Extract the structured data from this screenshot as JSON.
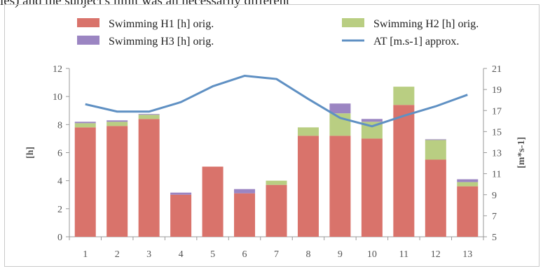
{
  "caption_text": "ies) and the subject's limit was an necessarily different",
  "chart_data": {
    "type": "bar",
    "stacked": true,
    "categories": [
      "1",
      "2",
      "3",
      "4",
      "5",
      "6",
      "7",
      "8",
      "9",
      "10",
      "11",
      "12",
      "13"
    ],
    "series": [
      {
        "name": "Swimming H1 [h] orig.",
        "axis": "left",
        "color": "#d9736b",
        "values": [
          7.8,
          7.9,
          8.4,
          3.0,
          5.0,
          3.1,
          3.7,
          7.2,
          7.2,
          7.0,
          9.4,
          5.5,
          3.6
        ]
      },
      {
        "name": "Swimming H2 [h] orig.",
        "axis": "left",
        "color": "#b9ce82",
        "values": [
          0.3,
          0.3,
          0.3,
          0.0,
          0.0,
          0.0,
          0.3,
          0.6,
          1.6,
          1.2,
          1.3,
          1.4,
          0.3
        ]
      },
      {
        "name": "Swimming H3 [h] orig.",
        "axis": "left",
        "color": "#9b85c2",
        "values": [
          0.1,
          0.1,
          0.05,
          0.15,
          0.0,
          0.3,
          0.0,
          0.0,
          0.7,
          0.2,
          0.0,
          0.05,
          0.2
        ]
      }
    ],
    "line": {
      "name": "AT [m.s-1] approx.",
      "axis": "right",
      "color": "#5f90c3",
      "values": [
        17.6,
        16.9,
        16.9,
        17.8,
        19.3,
        20.3,
        20.0,
        18.1,
        16.3,
        15.5,
        16.5,
        17.4,
        18.5
      ]
    },
    "ylabel": "[h]",
    "y2label": "[m*s-1]",
    "ylim": [
      0,
      12
    ],
    "yticks": [
      0,
      2,
      4,
      6,
      8,
      10,
      12
    ],
    "y2lim": [
      5,
      21
    ],
    "y2ticks": [
      5,
      7,
      9,
      11,
      13,
      15,
      17,
      19,
      21
    ],
    "legend": "top",
    "grid": false
  }
}
